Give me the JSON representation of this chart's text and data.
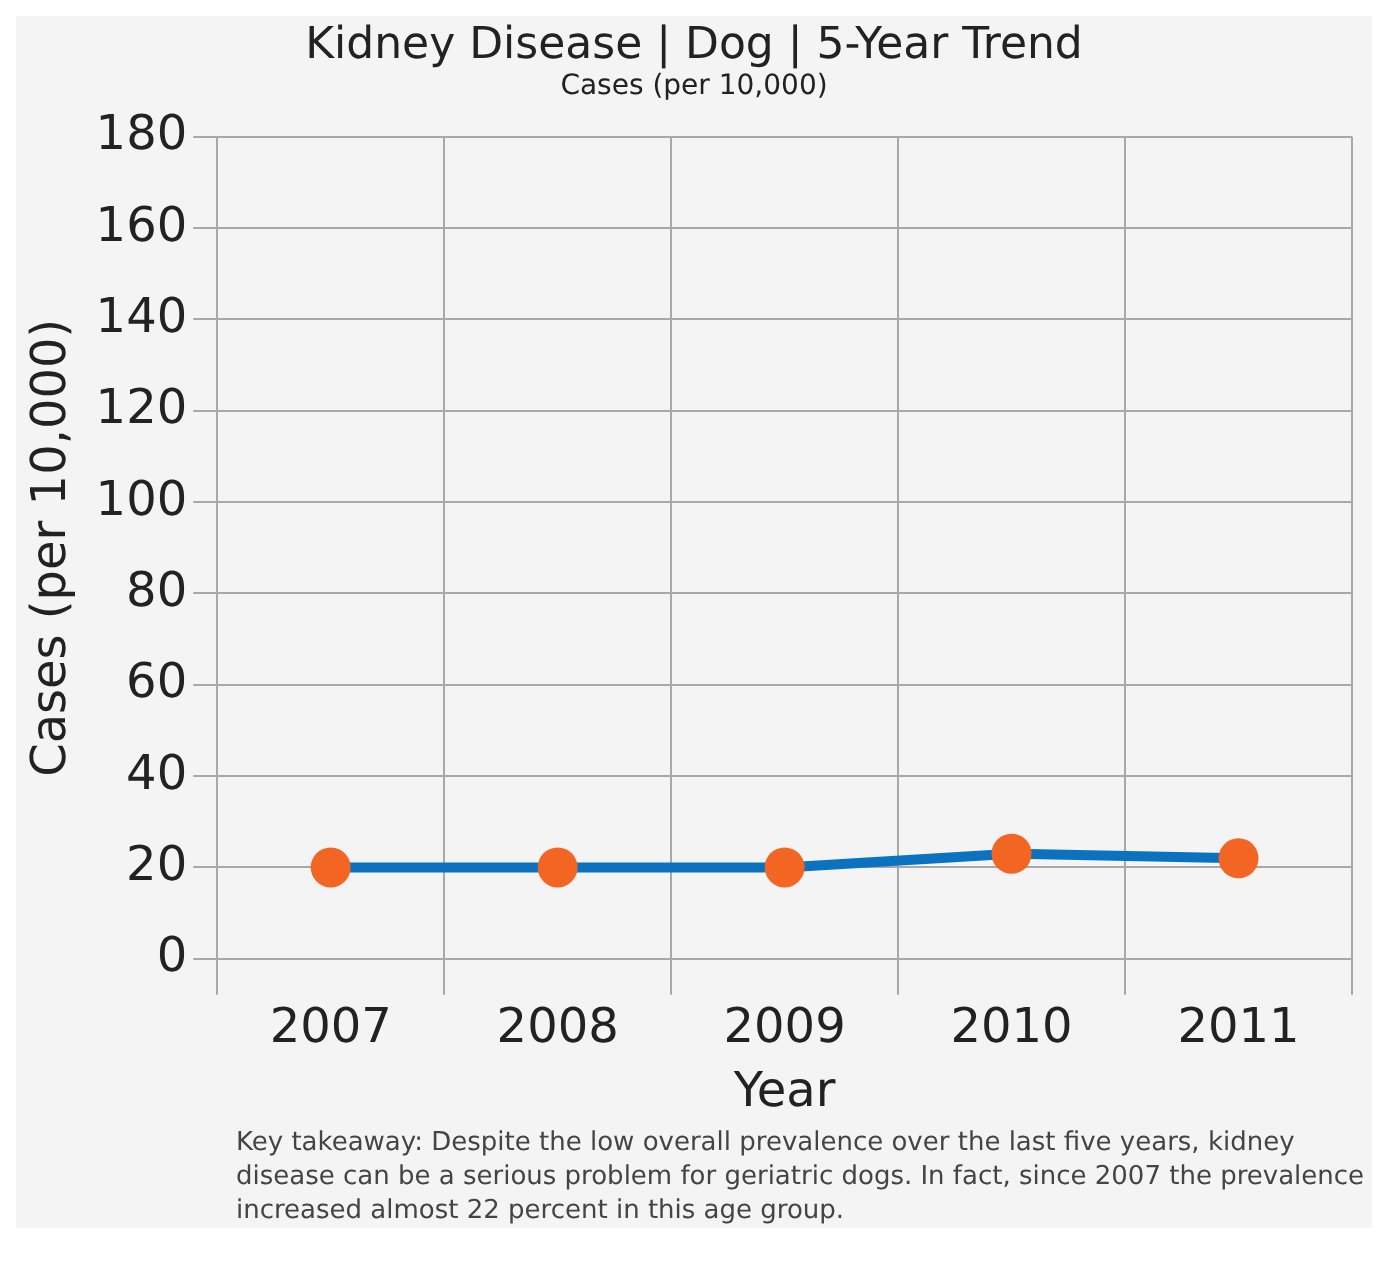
{
  "chart_data": {
    "type": "line",
    "title": "Kidney Disease | Dog | 5-Year Trend",
    "subtitle": "Cases (per 10,000)",
    "xlabel": "Year",
    "ylabel": "Cases (per 10,000)",
    "categories": [
      "2007",
      "2008",
      "2009",
      "2010",
      "2011"
    ],
    "series": [
      {
        "color": "#0a72bf",
        "colors": [
          "#f26522",
          "#f26522",
          "#f26522",
          "#f26522",
          "#f26522"
        ],
        "values": [
          20,
          20,
          20,
          23,
          22
        ]
      }
    ],
    "marker": "circle",
    "ylim": [
      0,
      180
    ],
    "yticks": [
      0,
      20,
      40,
      60,
      80,
      100,
      120,
      140,
      160,
      180
    ],
    "grid": true,
    "legend": false,
    "annotations": [
      "Key takeaway: Despite the low overall prevalence over the last five years, kidney disease can be a serious problem for geriatric dogs. In fact, since 2007 the prevalence increased almost 22 percent in this age group."
    ]
  }
}
